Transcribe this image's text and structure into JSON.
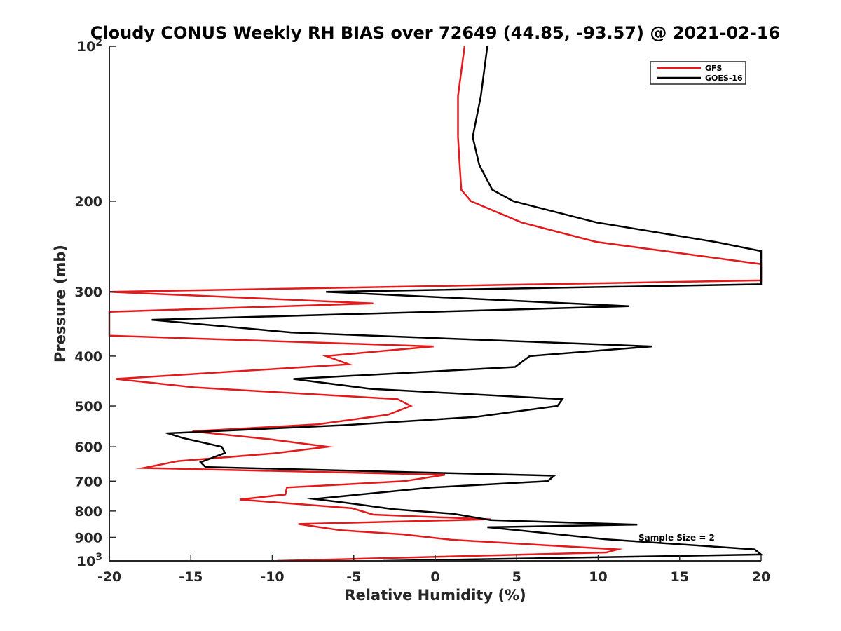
{
  "chart_data": {
    "type": "line",
    "title": "Cloudy CONUS Weekly RH BIAS over 72649 (44.85, -93.57) @ 2021-02-16",
    "xlabel": "Relative Humidity (%)",
    "ylabel": "Pressure (mb)",
    "xlim": [
      -20,
      20
    ],
    "ylim": [
      100,
      1000
    ],
    "y_scale": "log",
    "y_reversed": true,
    "grid": false,
    "legend_position": "top-right",
    "x_ticks": [
      "-20",
      "-15",
      "-10",
      "-5",
      "0",
      "5",
      "10",
      "15",
      "20"
    ],
    "x_tick_values": [
      -20,
      -15,
      -10,
      -5,
      0,
      5,
      10,
      15,
      20
    ],
    "y_ticks": [
      {
        "value": 100,
        "base": "10",
        "exp": "2"
      },
      {
        "value": 200,
        "label": "200"
      },
      {
        "value": 300,
        "label": "300"
      },
      {
        "value": 400,
        "label": "400"
      },
      {
        "value": 500,
        "label": "500"
      },
      {
        "value": 600,
        "label": "600"
      },
      {
        "value": 700,
        "label": "700"
      },
      {
        "value": 800,
        "label": "800"
      },
      {
        "value": 900,
        "label": "900"
      },
      {
        "value": 1000,
        "base": "10",
        "exp": "3"
      }
    ],
    "annotation": "Sample Size = 2",
    "series": [
      {
        "name": "GFS",
        "color": "#e31a1c",
        "points": [
          [
            1.8,
            100
          ],
          [
            1.4,
            125
          ],
          [
            1.4,
            150
          ],
          [
            1.5,
            170
          ],
          [
            1.6,
            190
          ],
          [
            2.2,
            200
          ],
          [
            5.3,
            220
          ],
          [
            9.9,
            240
          ],
          [
            20,
            265
          ],
          [
            20,
            285
          ],
          [
            -20,
            300
          ],
          [
            -3.8,
            316
          ],
          [
            -20,
            328
          ],
          [
            -20,
            365
          ],
          [
            -0.1,
            383
          ],
          [
            -6.7,
            400
          ],
          [
            -5.3,
            415
          ],
          [
            -19.6,
            443
          ],
          [
            -14.8,
            460
          ],
          [
            -2.3,
            485
          ],
          [
            -1.5,
            500
          ],
          [
            -2.9,
            520
          ],
          [
            -7.2,
            543
          ],
          [
            -14.9,
            560
          ],
          [
            -10.2,
            580
          ],
          [
            -6.6,
            600
          ],
          [
            -9.9,
            618
          ],
          [
            -15.8,
            640
          ],
          [
            -17.9,
            660
          ],
          [
            0.6,
            680
          ],
          [
            -1.9,
            700
          ],
          [
            -9.1,
            720
          ],
          [
            -9.2,
            743
          ],
          [
            -12.0,
            760
          ],
          [
            -5.1,
            790
          ],
          [
            -3.8,
            813
          ],
          [
            3.4,
            830
          ],
          [
            -8.4,
            848
          ],
          [
            -5.8,
            872
          ],
          [
            -2.0,
            888
          ],
          [
            1.0,
            910
          ],
          [
            11.2,
            950
          ],
          [
            10.5,
            963
          ],
          [
            -9.7,
            1000
          ]
        ]
      },
      {
        "name": "GOES-16",
        "color": "#000000",
        "points": [
          [
            3.2,
            100
          ],
          [
            2.8,
            125
          ],
          [
            2.3,
            150
          ],
          [
            2.7,
            170
          ],
          [
            3.5,
            190
          ],
          [
            4.8,
            200
          ],
          [
            9.9,
            220
          ],
          [
            17.2,
            240
          ],
          [
            20,
            250
          ],
          [
            20,
            290
          ],
          [
            -6.7,
            300
          ],
          [
            11.9,
            320
          ],
          [
            -17.4,
            340
          ],
          [
            -8.8,
            360
          ],
          [
            13.3,
            383
          ],
          [
            5.8,
            400
          ],
          [
            4.9,
            420
          ],
          [
            -8.7,
            443
          ],
          [
            -4.0,
            463
          ],
          [
            7.8,
            485
          ],
          [
            7.5,
            500
          ],
          [
            2.5,
            525
          ],
          [
            -5.6,
            545
          ],
          [
            -16.4,
            565
          ],
          [
            -15.5,
            577
          ],
          [
            -13.1,
            600
          ],
          [
            -12.9,
            617
          ],
          [
            -14.4,
            643
          ],
          [
            -14.1,
            657
          ],
          [
            7.3,
            683
          ],
          [
            6.9,
            700
          ],
          [
            -0.2,
            720
          ],
          [
            -7.4,
            758
          ],
          [
            -5.6,
            770
          ],
          [
            -2.6,
            793
          ],
          [
            1.1,
            810
          ],
          [
            3.4,
            833
          ],
          [
            12.4,
            850
          ],
          [
            3.2,
            860
          ],
          [
            5.7,
            876
          ],
          [
            10.5,
            908
          ],
          [
            19.6,
            950
          ],
          [
            20,
            972
          ],
          [
            -3.2,
            1000
          ]
        ]
      }
    ]
  }
}
